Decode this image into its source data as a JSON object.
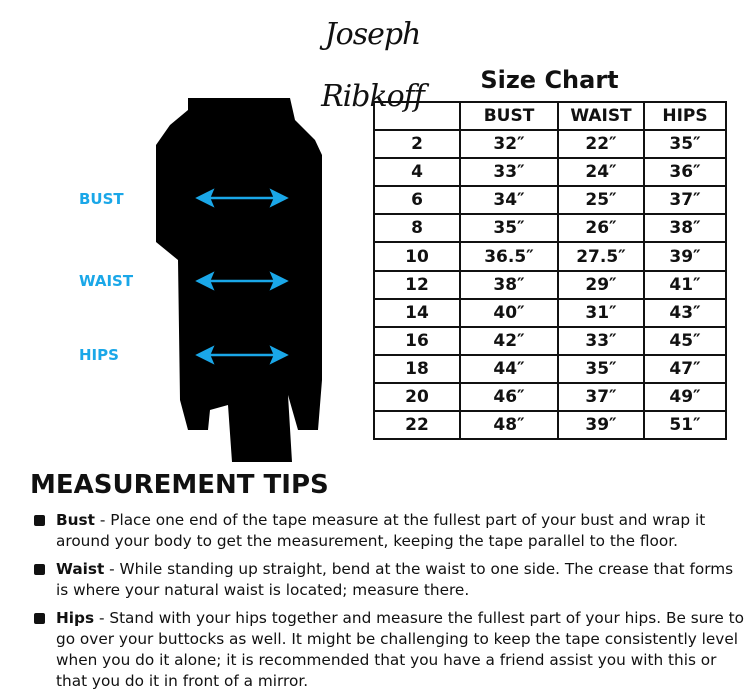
{
  "brand": "Joseph Ribkoff",
  "title": "Size Chart",
  "figure": {
    "labels": [
      "BUST",
      "WAIST",
      "HIPS"
    ],
    "arrow_color": "#1aa7e8"
  },
  "table": {
    "headers": [
      "",
      "BUST",
      "WAIST",
      "HIPS"
    ],
    "rows": [
      [
        "2",
        "32″",
        "22″",
        "35″"
      ],
      [
        "4",
        "33″",
        "24″",
        "36″"
      ],
      [
        "6",
        "34″",
        "25″",
        "37″"
      ],
      [
        "8",
        "35″",
        "26″",
        "38″"
      ],
      [
        "10",
        "36.5″",
        "27.5″",
        "39″"
      ],
      [
        "12",
        "38″",
        "29″",
        "41″"
      ],
      [
        "14",
        "40″",
        "31″",
        "43″"
      ],
      [
        "16",
        "42″",
        "33″",
        "45″"
      ],
      [
        "18",
        "44″",
        "35″",
        "47″"
      ],
      [
        "20",
        "46″",
        "37″",
        "49″"
      ],
      [
        "22",
        "48″",
        "39″",
        "51″"
      ]
    ]
  },
  "tips_heading": "MEASUREMENT TIPS",
  "tips": [
    {
      "term": "Bust",
      "text": " - Place one end of the tape measure at the fullest part of your bust and wrap it around your body to get the measurement, keeping the tape parallel to the floor."
    },
    {
      "term": "Waist",
      "text": " - While standing up straight, bend at the waist to one side. The crease that forms is where your natural waist is located; measure there."
    },
    {
      "term": "Hips",
      "text": " - Stand with your hips together and measure the fullest part of your hips. Be sure to go over your buttocks as well. It might be challenging to keep the tape consistently level when you do it alone; it is recommended that you have a friend assist you with this or that you do it in front of a mirror."
    }
  ]
}
